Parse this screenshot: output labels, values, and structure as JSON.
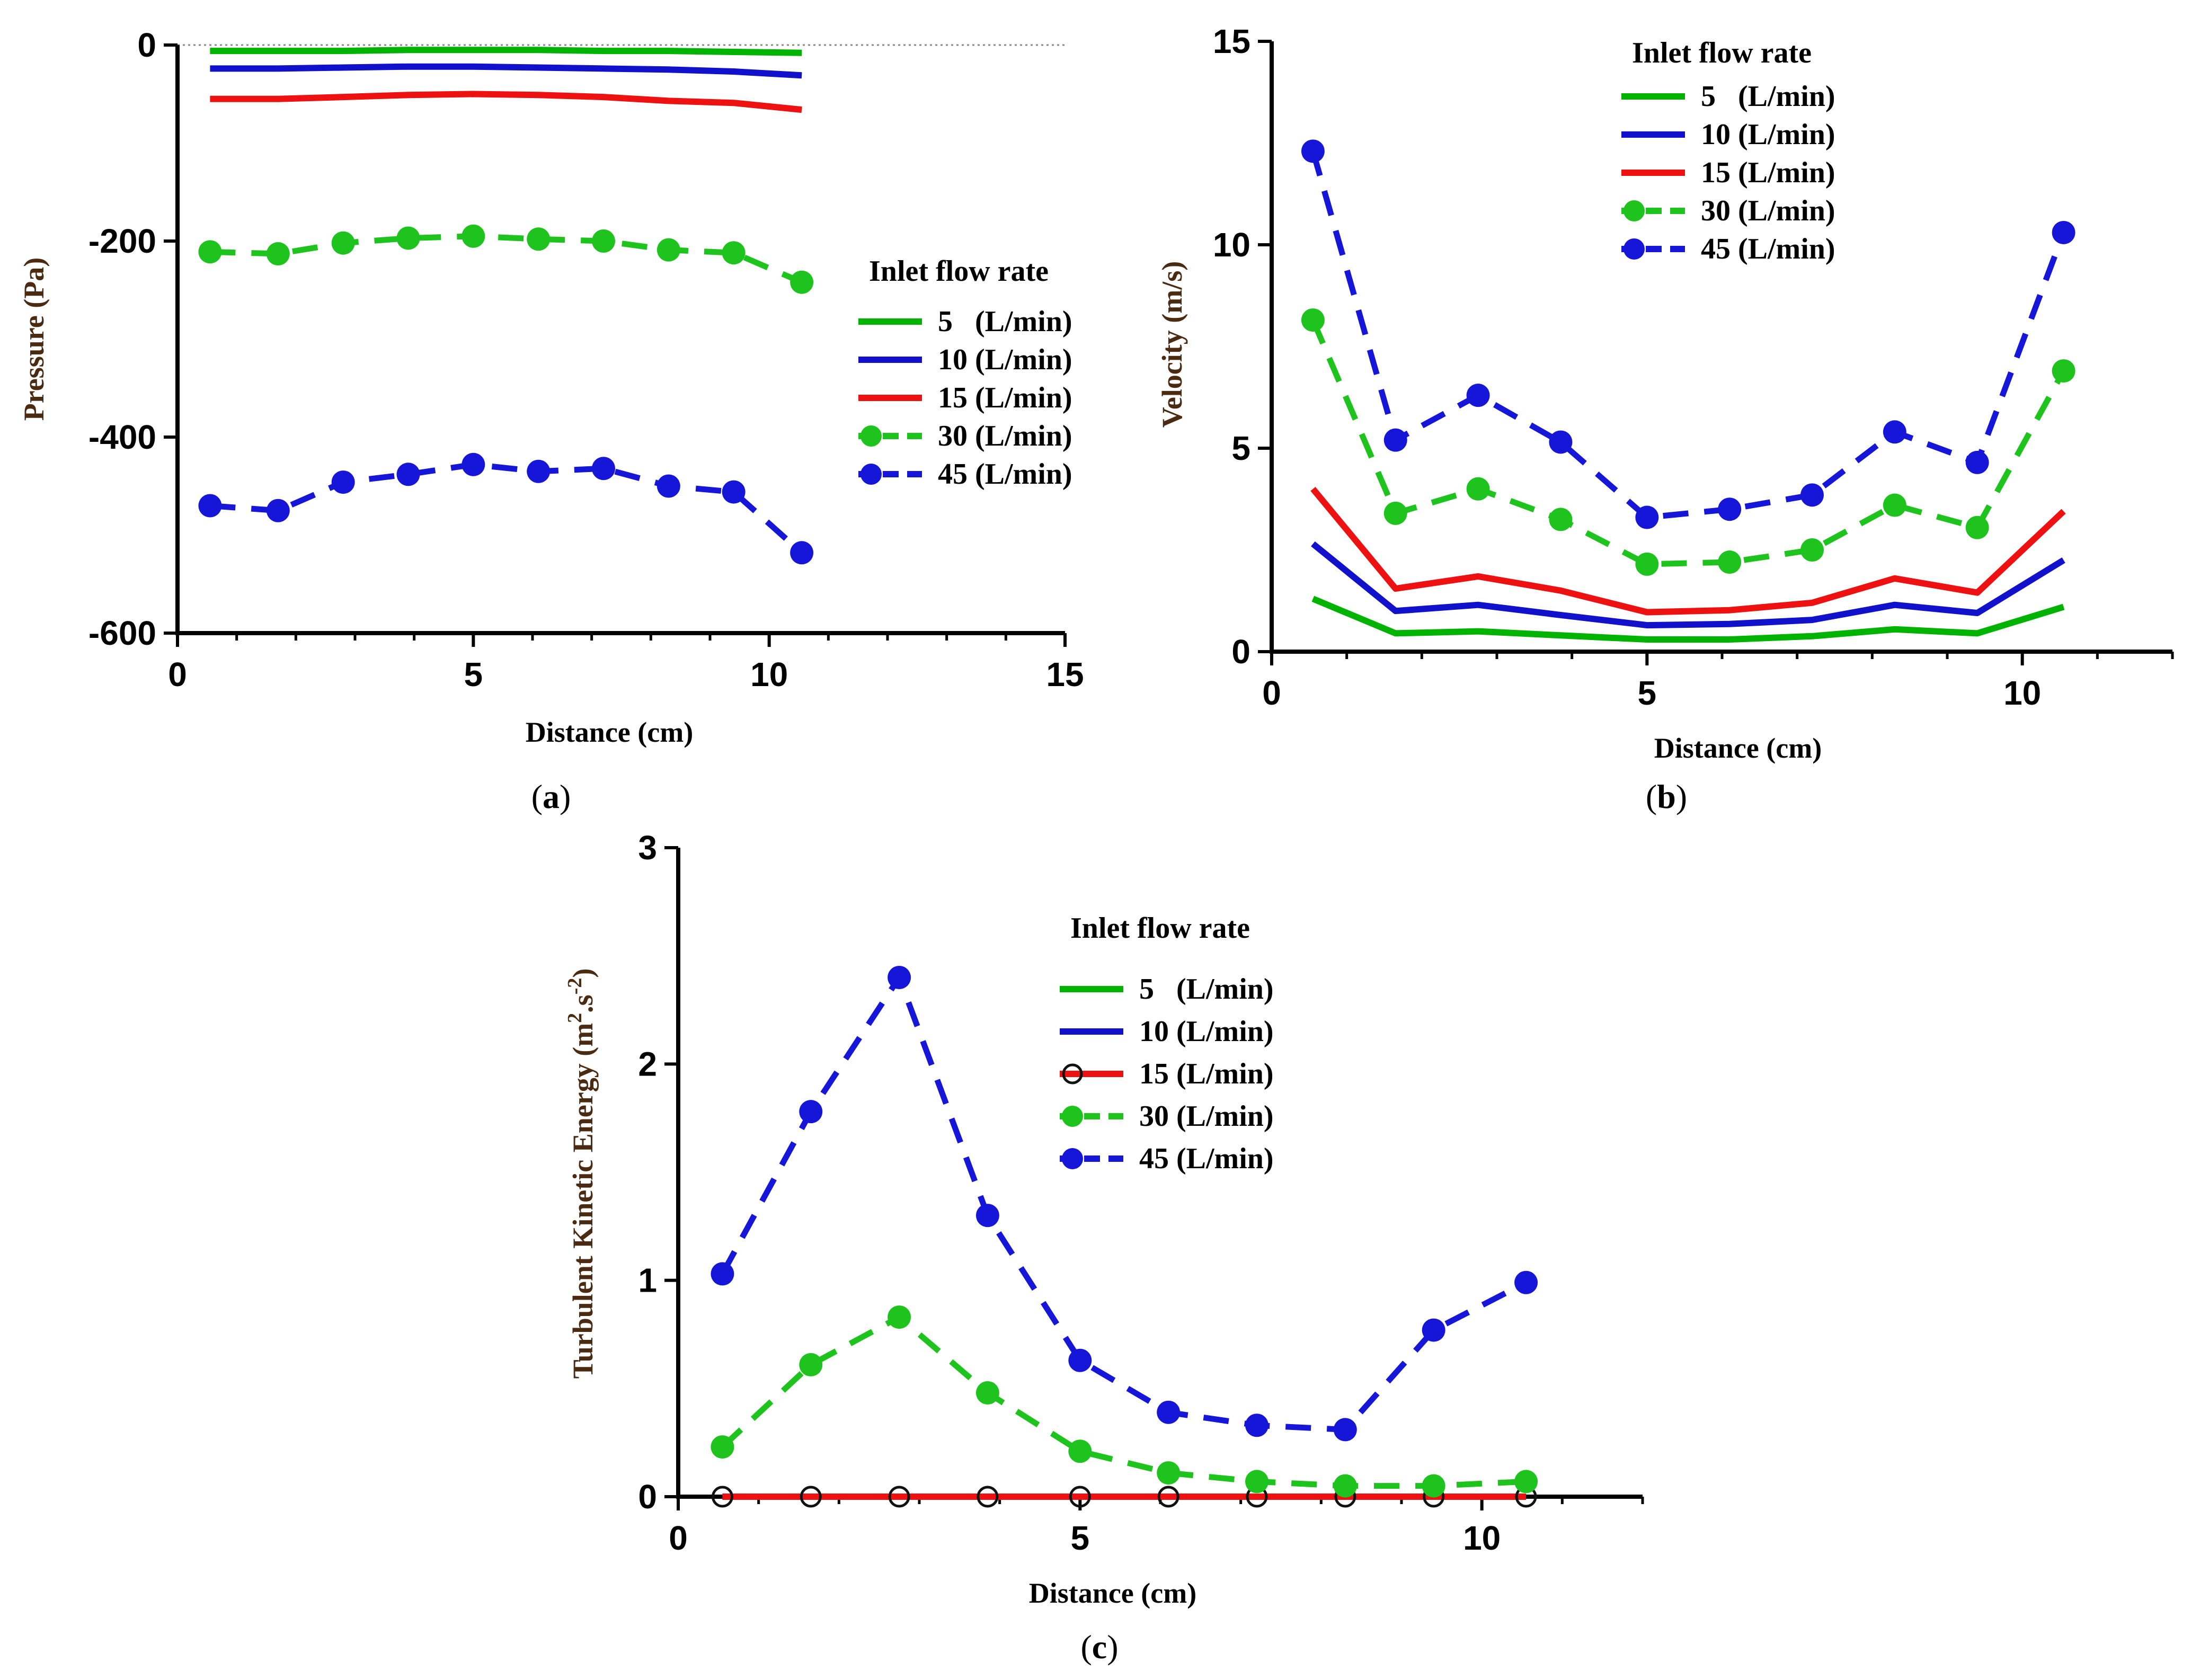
{
  "chart_data": [
    {
      "id": "a",
      "type": "line",
      "panel_label": "a",
      "xlabel": "Distance (cm)",
      "ylabel": "Pressure (Pa)",
      "xlim": [
        0,
        15
      ],
      "ylim": [
        -600,
        0
      ],
      "xticks": [
        0,
        5,
        10,
        15
      ],
      "xtick_labels": [
        "0",
        "5",
        "10",
        "15"
      ],
      "yticks": [
        -600,
        -400,
        -200,
        0
      ],
      "ytick_labels": [
        "-600",
        "-400",
        "-200",
        "0"
      ],
      "zero_reference_line": true,
      "legend": {
        "title": "Inlet flow rate",
        "placement": "right-middle"
      },
      "x": [
        0.55,
        1.7,
        2.8,
        3.9,
        5.0,
        6.1,
        7.2,
        8.3,
        9.4,
        10.55
      ],
      "series": [
        {
          "name": "5   (L/min)",
          "color": "#00b300",
          "style": "solid",
          "markers": false,
          "values": [
            -6,
            -6,
            -6,
            -5,
            -5,
            -5,
            -6,
            -6,
            -7,
            -8
          ]
        },
        {
          "name": "10 (L/min)",
          "color": "#1111cc",
          "style": "solid",
          "markers": false,
          "values": [
            -24,
            -24,
            -23,
            -22,
            -22,
            -23,
            -24,
            -25,
            -27,
            -31
          ]
        },
        {
          "name": "15 (L/min)",
          "color": "#ee1111",
          "style": "solid",
          "markers": false,
          "values": [
            -55,
            -55,
            -53,
            -51,
            -50,
            -51,
            -53,
            -57,
            -59,
            -66
          ]
        },
        {
          "name": "30 (L/min)",
          "color": "#1ec31e",
          "style": "dashed",
          "markers": true,
          "values": [
            -211,
            -213,
            -202,
            -197,
            -195,
            -198,
            -200,
            -209,
            -212,
            -242
          ]
        },
        {
          "name": "45 (L/min)",
          "color": "#1616d8",
          "style": "dashed",
          "markers": true,
          "values": [
            -470,
            -475,
            -446,
            -438,
            -428,
            -435,
            -432,
            -450,
            -456,
            -518
          ]
        }
      ]
    },
    {
      "id": "b",
      "type": "line",
      "panel_label": "b",
      "xlabel": "Distance (cm)",
      "ylabel": "Velocity (m/s)",
      "xlim": [
        0,
        12
      ],
      "ylim": [
        0,
        15
      ],
      "xticks": [
        0,
        5,
        10
      ],
      "xtick_labels": [
        "0",
        "5",
        "10"
      ],
      "yticks": [
        0,
        5,
        10,
        15
      ],
      "ytick_labels": [
        "0",
        "5",
        "10",
        "15"
      ],
      "legend": {
        "title": "Inlet flow rate",
        "placement": "top-right"
      },
      "x": [
        0.55,
        1.65,
        2.75,
        3.85,
        5.0,
        6.1,
        7.2,
        8.3,
        9.4,
        10.55
      ],
      "series": [
        {
          "name": "5   (L/min)",
          "color": "#00b300",
          "style": "solid",
          "markers": false,
          "values": [
            1.3,
            0.45,
            0.5,
            0.4,
            0.3,
            0.3,
            0.38,
            0.55,
            0.45,
            1.1
          ]
        },
        {
          "name": "10 (L/min)",
          "color": "#1111cc",
          "style": "solid",
          "markers": false,
          "values": [
            2.65,
            1.0,
            1.15,
            0.9,
            0.65,
            0.68,
            0.78,
            1.15,
            0.95,
            2.25
          ]
        },
        {
          "name": "15 (L/min)",
          "color": "#ee1111",
          "style": "solid",
          "markers": false,
          "values": [
            4.0,
            1.55,
            1.85,
            1.5,
            0.97,
            1.02,
            1.2,
            1.8,
            1.45,
            3.45
          ]
        },
        {
          "name": "30 (L/min)",
          "color": "#1ec31e",
          "style": "dashed",
          "markers": true,
          "values": [
            8.15,
            3.4,
            4.0,
            3.25,
            2.15,
            2.2,
            2.5,
            3.6,
            3.05,
            6.9
          ]
        },
        {
          "name": "45 (L/min)",
          "color": "#1616d8",
          "style": "dashed",
          "markers": true,
          "values": [
            12.3,
            5.2,
            6.3,
            5.15,
            3.3,
            3.5,
            3.85,
            5.4,
            4.65,
            10.3
          ]
        }
      ]
    },
    {
      "id": "c",
      "type": "line",
      "panel_label": "c",
      "xlabel": "Distance (cm)",
      "ylabel_main": "Turbulent Kinetic Energy (m",
      "ylabel_sup1": "2",
      "ylabel_mid": ".s",
      "ylabel_sup2": "-2",
      "ylabel_end": ")",
      "xlim": [
        0,
        12
      ],
      "ylim": [
        0,
        3
      ],
      "xticks": [
        0,
        5,
        10
      ],
      "xtick_labels": [
        "0",
        "5",
        "10"
      ],
      "yticks": [
        0,
        1,
        2,
        3
      ],
      "ytick_labels": [
        "0",
        "1",
        "2",
        "3"
      ],
      "legend": {
        "title": "Inlet flow rate",
        "placement": "top-right"
      },
      "x": [
        0.55,
        1.65,
        2.75,
        3.85,
        5.0,
        6.1,
        7.2,
        8.3,
        9.4,
        10.55
      ],
      "series": [
        {
          "name": "5   (L/min)",
          "color": "#00b300",
          "style": "solid",
          "markers": false,
          "values": [
            0,
            0,
            0,
            0,
            0,
            0,
            0,
            0,
            0,
            0
          ]
        },
        {
          "name": "10 (L/min)",
          "color": "#1111cc",
          "style": "solid",
          "markers": false,
          "values": [
            0,
            0,
            0,
            0,
            0,
            0,
            0,
            0,
            0,
            0
          ]
        },
        {
          "name": "15 (L/min)",
          "color": "#ee1111",
          "style": "solid",
          "markers": "open-circle",
          "values": [
            0,
            0,
            0,
            0,
            0,
            0,
            0,
            0,
            0,
            0
          ]
        },
        {
          "name": "30 (L/min)",
          "color": "#1ec31e",
          "style": "dashed",
          "markers": true,
          "values": [
            0.23,
            0.61,
            0.83,
            0.48,
            0.21,
            0.11,
            0.07,
            0.05,
            0.05,
            0.07
          ]
        },
        {
          "name": "45 (L/min)",
          "color": "#1616d8",
          "style": "dashed",
          "markers": true,
          "values": [
            1.03,
            1.78,
            2.4,
            1.3,
            0.63,
            0.39,
            0.33,
            0.31,
            0.77,
            0.99
          ]
        }
      ]
    }
  ]
}
